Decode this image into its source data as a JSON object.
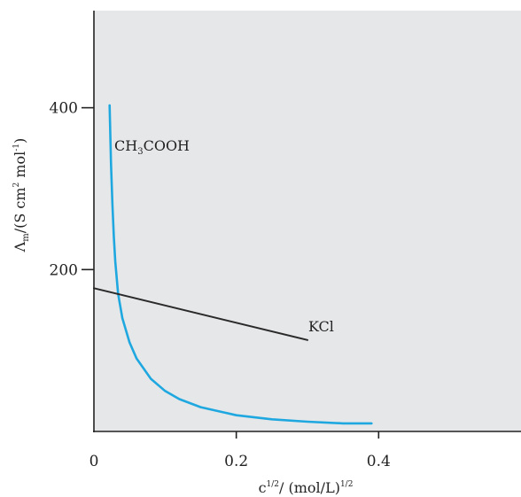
{
  "chart_data": {
    "type": "line",
    "x": [
      0,
      0.2,
      0.4
    ],
    "y_ticks": [
      200,
      400
    ],
    "xlim": [
      0,
      0.6
    ],
    "ylim": [
      0,
      520
    ],
    "xlabel": {
      "base": "c",
      "sup": "1/2",
      "rest": "/ (mol/L)",
      "sup2": "1/2"
    },
    "ylabel": {
      "base": "Λ",
      "sub": "m",
      "rest": "/(S cm",
      "sup": "2",
      "rest2": " mol",
      "sup2": "-1",
      "rest3": ")"
    },
    "x_tick_labels": [
      "0",
      "0.2",
      "0.4"
    ],
    "y_tick_labels": [
      "200",
      "400"
    ],
    "grid": false,
    "legend": "none",
    "series": [
      {
        "name": "CH3COOH",
        "label_parts": [
          "CH",
          "3",
          "COOH"
        ],
        "color": "#1fa8e0",
        "x": [
          0.022,
          0.024,
          0.026,
          0.028,
          0.03,
          0.034,
          0.04,
          0.05,
          0.06,
          0.08,
          0.1,
          0.12,
          0.15,
          0.2,
          0.25,
          0.3,
          0.35,
          0.39
        ],
        "y": [
          403,
          330,
          280,
          240,
          210,
          170,
          140,
          110,
          90,
          65,
          50,
          40,
          30,
          20,
          15,
          12,
          10,
          10
        ]
      },
      {
        "name": "KCl",
        "color": "#2a2a2a",
        "x": [
          0,
          0.3
        ],
        "y": [
          177,
          113
        ]
      }
    ]
  },
  "colors": {
    "plot_background": "#e6e7e9",
    "axis": "#222222"
  }
}
